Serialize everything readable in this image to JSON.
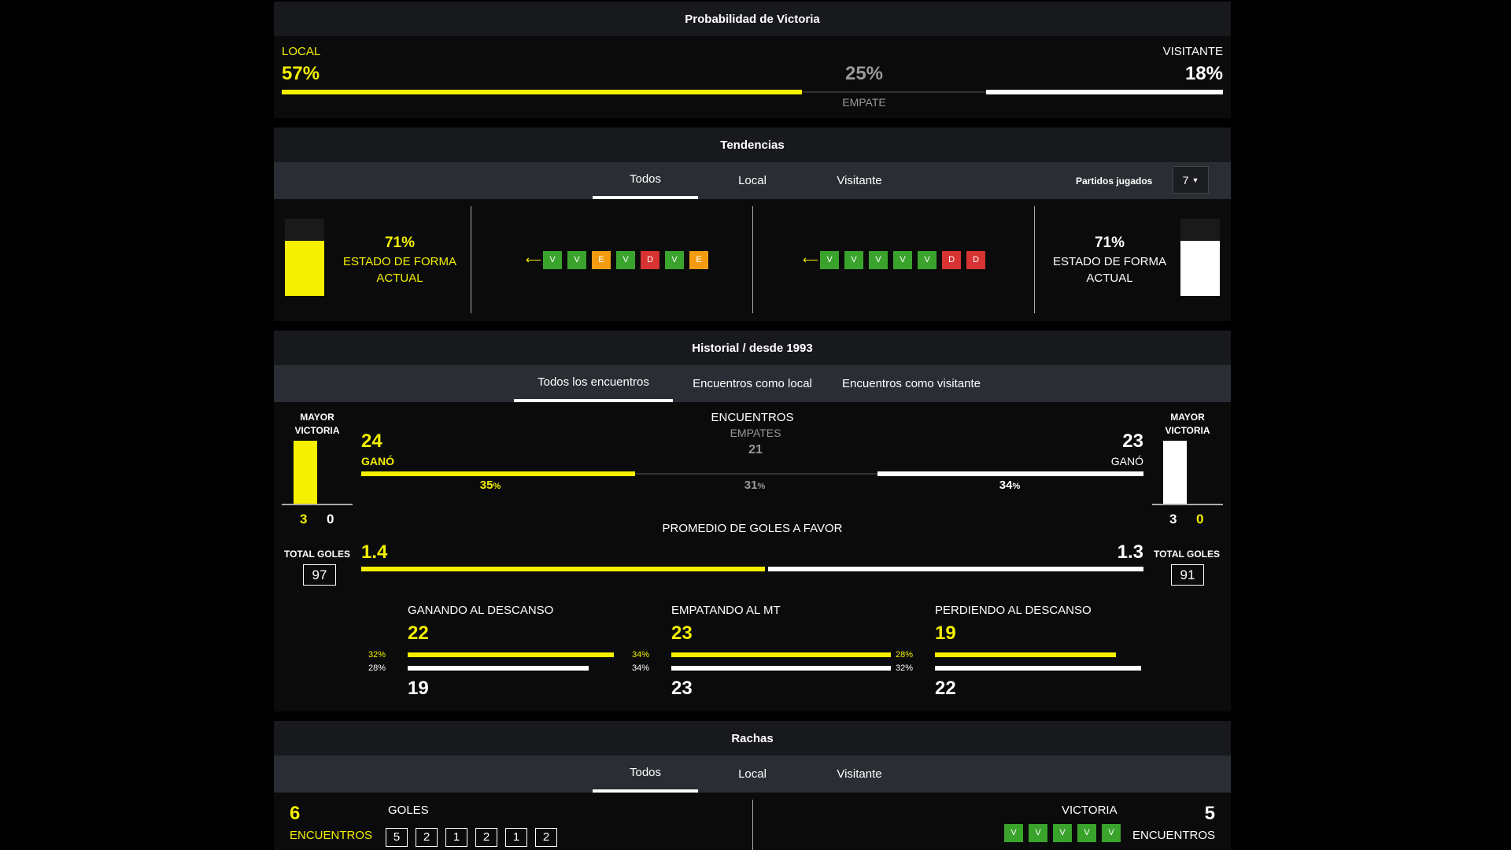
{
  "colors": {
    "home": "#f4f000",
    "away": "#ffffff",
    "win": "#3aa32c",
    "draw": "#f39c12",
    "loss": "#d73333"
  },
  "prob": {
    "title": "Probabilidad de Victoria",
    "home_label": "LOCAL",
    "home_pct": "57%",
    "home_value": 0.57,
    "draw_pct": "25%",
    "draw_label": "EMPATE",
    "draw_value": 0.25,
    "away_label": "VISITANTE",
    "away_pct": "18%",
    "away_value": 0.18
  },
  "trends": {
    "title": "Tendencias",
    "tabs": [
      "Todos",
      "Local",
      "Visitante"
    ],
    "played_label": "Partidos jugados",
    "played_value": "7",
    "home_form_pct": "71%",
    "home_form_value": 0.71,
    "home_form_label": "ESTADO DE FORMA ACTUAL",
    "away_form_pct": "71%",
    "away_form_value": 0.71,
    "away_form_label": "ESTADO DE FORMA ACTUAL",
    "home_results": [
      "V",
      "V",
      "E",
      "V",
      "D",
      "V",
      "E"
    ],
    "away_results": [
      "V",
      "V",
      "V",
      "V",
      "V",
      "D",
      "D"
    ]
  },
  "history": {
    "title": "Historial / desde 1993",
    "tabs": [
      "Todos los encuentros",
      "Encuentros como local",
      "Encuentros como visitante"
    ],
    "biggest_win_label": "MAYOR VICTORIA",
    "home_biggest": {
      "for": "3",
      "against": "0"
    },
    "away_biggest": {
      "for": "3",
      "against": "0"
    },
    "encounters_label": "ENCUENTROS",
    "draws_label": "EMPATES",
    "draws": "21",
    "home_wins": "24",
    "away_wins": "23",
    "won_label": "GANÓ",
    "home_win_pct": "35",
    "draw_pct": "31",
    "away_win_pct": "34",
    "pct_sign": "%",
    "avg_goals_label": "PROMEDIO DE GOLES A FAVOR",
    "home_avg": "1.4",
    "away_avg": "1.3",
    "total_goals_label": "TOTAL GOLES",
    "home_total": "97",
    "away_total": "91",
    "halftime": [
      {
        "label": "GANANDO AL DESCANSO",
        "home": "22",
        "home_pct": "32%",
        "home_value": 0.32,
        "away": "19",
        "away_pct": "28%",
        "away_value": 0.28
      },
      {
        "label": "EMPATANDO AL MT",
        "home": "23",
        "home_pct": "34%",
        "home_value": 0.34,
        "away": "23",
        "away_pct": "34%",
        "away_value": 0.34
      },
      {
        "label": "PERDIENDO AL DESCANSO",
        "home": "19",
        "home_pct": "28%",
        "home_value": 0.28,
        "away": "22",
        "away_pct": "32%",
        "away_value": 0.32
      }
    ]
  },
  "streaks": {
    "title": "Rachas",
    "tabs": [
      "Todos",
      "Local",
      "Visitante"
    ],
    "left_count": "6",
    "left_label": "ENCUENTROS",
    "goals_label": "GOLES",
    "goals": [
      "5",
      "2",
      "1",
      "2",
      "1",
      "2"
    ],
    "right_label": "VICTORIA",
    "right_count": "5",
    "right_sub": "ENCUENTROS",
    "right_results": [
      "V",
      "V",
      "V",
      "V",
      "V"
    ]
  }
}
